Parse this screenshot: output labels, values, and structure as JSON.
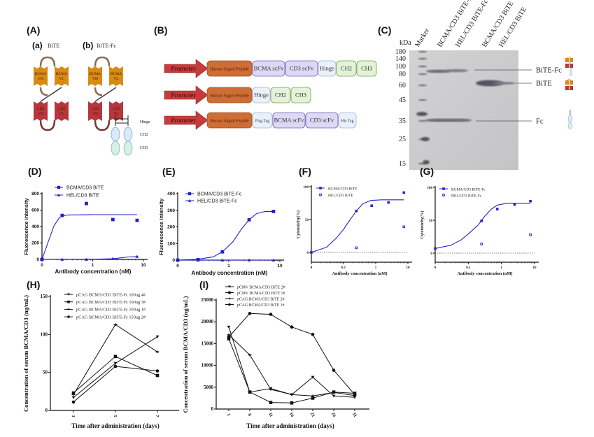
{
  "panel_A": {
    "label": "(A)",
    "a_label": "(a)",
    "a_title": "BiTE",
    "b_label": "(b)",
    "b_title": "BiTE-Fc",
    "domains": {
      "bcma_vh": [
        "BCMA",
        "VH"
      ],
      "bcma_vl": [
        "BCMA",
        "VL"
      ],
      "cd3_vh": [
        "CD3",
        "VH"
      ],
      "cd3_vl": [
        "CD3",
        "VL"
      ]
    },
    "fc_labels": {
      "hinge": "Hinge",
      "ch2": "CH2",
      "ch3": "CH3"
    },
    "colors": {
      "bcma": "#d98a12",
      "cd3": "#b8363b",
      "ch2": "#dbe9f7",
      "ch3": "#d7efe6"
    }
  },
  "panel_B": {
    "label": "(B)",
    "rows": [
      {
        "promoter": "Promoter",
        "segments": [
          "Human Signal Peptide",
          "BCMA scFv",
          "CD3 scFv",
          "Hinge",
          "CH2",
          "CH3"
        ]
      },
      {
        "promoter": "Promoter",
        "segments": [
          "Human Signal Peptide",
          "Hinge",
          "CH2",
          "CH3"
        ]
      },
      {
        "promoter": "Promoter",
        "segments": [
          "Human Signal Peptide",
          "Flag Tag",
          "BCMA scFv",
          "CD3 scFv",
          "His Tag"
        ]
      }
    ],
    "colors": {
      "promoter": "#c63c3c",
      "signal": "#cf6d36",
      "scfv": "#ddd8f4",
      "hinge": "#eaf1fb",
      "ch": "#e4f3d8"
    }
  },
  "panel_C": {
    "label": "(C)",
    "unit": "kDa",
    "lanes": [
      "Marker",
      "BCMA/CD3 BiTE-Fc",
      "HEL/CD3 BiTE-Fc",
      "BCMA/CD3 BiTE",
      "HEL/CD3 BiTE"
    ],
    "marker_kda": [
      "180",
      "140",
      "100",
      "80",
      "60",
      "45",
      "35",
      "25",
      "15"
    ],
    "band_labels": {
      "bite_fc": "BiTE-Fc",
      "bite": "BiTE",
      "fc": "Fc"
    }
  },
  "chart_data": [
    {
      "id": "D",
      "panel_label": "(D)",
      "type": "line",
      "xlabel": "Antibody concentration (nM)",
      "ylabel": "Fluorescence intensity",
      "xscale": "log",
      "xlim": [
        0.1,
        10
      ],
      "ylim": [
        0,
        800
      ],
      "xticks": [
        {
          "label": "0",
          "value": 0.1
        },
        {
          "label": "1",
          "value": 1
        },
        {
          "label": "10",
          "value": 10
        }
      ],
      "yticks": [
        {
          "label": "0",
          "value": 0
        },
        {
          "label": "200",
          "value": 200
        },
        {
          "label": "400",
          "value": 400
        },
        {
          "label": "600",
          "value": 600
        },
        {
          "label": "800",
          "value": 800
        }
      ],
      "series": [
        {
          "name": "BCMA/CD3 BiTE",
          "marker": "square",
          "x": [
            0,
            0.25,
            0.75,
            2.5,
            7.5
          ],
          "y": [
            0,
            535,
            680,
            485,
            475
          ],
          "curve": {
            "x": [
              0.1,
              0.13,
              0.17,
              0.22,
              0.3,
              1,
              7.5
            ],
            "y": [
              0,
              200,
              400,
              510,
              540,
              545,
              545
            ]
          }
        },
        {
          "name": "HEL/CD3 BiTE",
          "marker": "triangle",
          "x": [
            0,
            0.25,
            0.75,
            2.5,
            7.5
          ],
          "y": [
            0,
            0,
            0,
            10,
            35
          ],
          "curve": {
            "x": [
              0.1,
              1,
              2.5,
              5,
              7.5
            ],
            "y": [
              0,
              2,
              8,
              30,
              35
            ]
          }
        }
      ]
    },
    {
      "id": "E",
      "panel_label": "(E)",
      "type": "line",
      "xlabel": "Antibody concentration (nM)",
      "ylabel": "Fluorescence intensity",
      "xscale": "log",
      "xlim": [
        0.1,
        10
      ],
      "ylim": [
        0,
        400
      ],
      "xticks": [
        {
          "label": "0",
          "value": 0.1
        },
        {
          "label": "1",
          "value": 1
        },
        {
          "label": "10",
          "value": 10
        }
      ],
      "yticks": [
        {
          "label": "0",
          "value": 0
        },
        {
          "label": "100",
          "value": 100
        },
        {
          "label": "200",
          "value": 200
        },
        {
          "label": "300",
          "value": 300
        },
        {
          "label": "400",
          "value": 400
        }
      ],
      "series": [
        {
          "name": "BCMA/CD3 BiTE-Fc",
          "marker": "square",
          "x": [
            0,
            0.25,
            0.75,
            2.5,
            7.5
          ],
          "y": [
            0,
            3,
            50,
            243,
            293
          ],
          "curve": {
            "x": [
              0.1,
              0.25,
              0.5,
              0.75,
              1.2,
              1.8,
              2.5,
              3.5,
              5,
              7.5
            ],
            "y": [
              0,
              5,
              20,
              50,
              110,
              190,
              243,
              280,
              292,
              293
            ]
          }
        },
        {
          "name": "HEL/CD3 BiTE-Fc",
          "marker": "triangle",
          "x": [
            0,
            0.25,
            0.75,
            2.5,
            7.5
          ],
          "y": [
            0,
            0,
            0,
            0,
            0
          ],
          "curve": {
            "x": [
              0.1,
              7.5
            ],
            "y": [
              0,
              0
            ]
          }
        }
      ]
    },
    {
      "id": "F",
      "panel_label": "(F)",
      "type": "scatter",
      "xlabel": "Antibody concentration (nM)",
      "ylabel": "Cytotoxicity(%)",
      "xscale": "log",
      "xlim": [
        0.01,
        10
      ],
      "ylim": [
        -15,
        100
      ],
      "reference_line_y": 0,
      "xticks": [
        {
          "label": "0",
          "value": 0.01
        },
        {
          "label": "0.1",
          "value": 0.1
        },
        {
          "label": "1",
          "value": 1
        },
        {
          "label": "10",
          "value": 10
        }
      ],
      "yticks": [
        {
          "label": "0",
          "value": 0
        },
        {
          "label": "50",
          "value": 50
        },
        {
          "label": "100",
          "value": 100
        }
      ],
      "series": [
        {
          "name": "BCMA/CD3 BiTE",
          "marker": "square",
          "x": [
            0,
            0.25,
            0.75,
            2.5,
            7.5
          ],
          "y": [
            0,
            63,
            71,
            76,
            91
          ],
          "curve": {
            "x": [
              0.01,
              0.03,
              0.06,
              0.1,
              0.15,
              0.25,
              0.4,
              0.7,
              1.5,
              7.5
            ],
            "y": [
              0,
              8,
              22,
              35,
              48,
              63,
              74,
              79,
              80,
              80
            ]
          }
        },
        {
          "name": "HEL/CD3 BiTE",
          "marker": "open-square",
          "x": [
            0.25,
            7.5
          ],
          "y": [
            7,
            39
          ]
        }
      ]
    },
    {
      "id": "G",
      "panel_label": "(G)",
      "type": "scatter",
      "xlabel": "Antibody concentration (nM)",
      "ylabel": "Cytotoxicity(%)",
      "xscale": "log",
      "xlim": [
        0.01,
        10
      ],
      "ylim": [
        -15,
        100
      ],
      "reference_line_y": 0,
      "xticks": [
        {
          "label": "0",
          "value": 0.01
        },
        {
          "label": "0.1",
          "value": 0.1
        },
        {
          "label": "1",
          "value": 1
        },
        {
          "label": "10",
          "value": 10
        }
      ],
      "yticks": [
        {
          "label": "0",
          "value": 0
        },
        {
          "label": "50",
          "value": 50
        },
        {
          "label": "100",
          "value": 100
        }
      ],
      "series": [
        {
          "name": "BCMA/CD3 BiTE-Fc",
          "marker": "square",
          "x": [
            0,
            0.25,
            0.75,
            2.5,
            7.5
          ],
          "y": [
            7,
            49,
            67,
            74,
            79
          ],
          "curve": {
            "x": [
              0.01,
              0.03,
              0.06,
              0.1,
              0.2,
              0.3,
              0.5,
              0.75,
              1.5,
              7.5
            ],
            "y": [
              7,
              12,
              20,
              29,
              43,
              55,
              67,
              73,
              76,
              76
            ]
          }
        },
        {
          "name": "HEL/CD3 BiTE-Fc",
          "marker": "open-square",
          "x": [
            0.25,
            7.5
          ],
          "y": [
            14,
            28
          ]
        }
      ]
    },
    {
      "id": "H",
      "panel_label": "(H)",
      "type": "line",
      "xlabel": "Time after administration (days)",
      "ylabel": "Concentration of serum BCMA/CD3 (ng/mL)",
      "xscale": "category",
      "categories": [
        "3",
        "5",
        "7"
      ],
      "ylim": [
        0,
        150
      ],
      "yticks": [
        {
          "label": "0",
          "value": 0
        },
        {
          "label": "50",
          "value": 50
        },
        {
          "label": "100",
          "value": 100
        },
        {
          "label": "150",
          "value": 150
        }
      ],
      "series": [
        {
          "name": "pCAG BCMA/CD3 BiTE-Fc 100ug 4#",
          "marker": "triangle-down",
          "y": [
            17,
            62,
            97
          ]
        },
        {
          "name": "pCAG BCMA/CD3 BiTE-Fc 100ug 3#",
          "marker": "square",
          "y": [
            23,
            71,
            46
          ]
        },
        {
          "name": "pCAG BCMA/CD3 BiTE-Fc 100ug 1#",
          "marker": "star",
          "y": [
            21,
            113,
            77
          ]
        },
        {
          "name": "pCAG BCMA/CD3 BiTE-Fc 150ug 2#",
          "marker": "circle",
          "y": [
            11,
            58,
            52
          ]
        }
      ]
    },
    {
      "id": "I",
      "panel_label": "(I)",
      "type": "line",
      "xlabel": "Time after administration (days)",
      "ylabel": "Concentration of serum BCMA/CD3 (ng/mL)",
      "xscale": "category",
      "categories": [
        "1",
        "6",
        "11",
        "16",
        "21",
        "26",
        "31"
      ],
      "ylim": [
        0,
        25000
      ],
      "yticks": [
        {
          "label": "0",
          "value": 0
        },
        {
          "label": "5000",
          "value": 5000
        },
        {
          "label": "10000",
          "value": 10000
        },
        {
          "label": "15000",
          "value": 15000
        },
        {
          "label": "20000",
          "value": 20000
        },
        {
          "label": "25000",
          "value": 25000
        }
      ],
      "series": [
        {
          "name": "pCMV BCMA/CD3 BiTE 2#",
          "marker": "triangle-down",
          "y": [
            18800,
            3900,
            4700,
            3300,
            7300,
            3000,
            2700
          ]
        },
        {
          "name": "pCMV BCMA/CD3 BiTE 1#",
          "marker": "square",
          "y": [
            16100,
            3900,
            1500,
            1400,
            2500,
            3900,
            3600
          ]
        },
        {
          "name": "pCAG BCMA/CD3 BiTE 2#",
          "marker": "star",
          "y": [
            17000,
            12400,
            4500,
            3300,
            3000,
            3800,
            3100
          ]
        },
        {
          "name": "pCAG BCMA/CD3 BiTE 1#",
          "marker": "circle",
          "y": [
            16500,
            21900,
            21700,
            18800,
            17100,
            8900,
            3300
          ]
        }
      ]
    }
  ]
}
